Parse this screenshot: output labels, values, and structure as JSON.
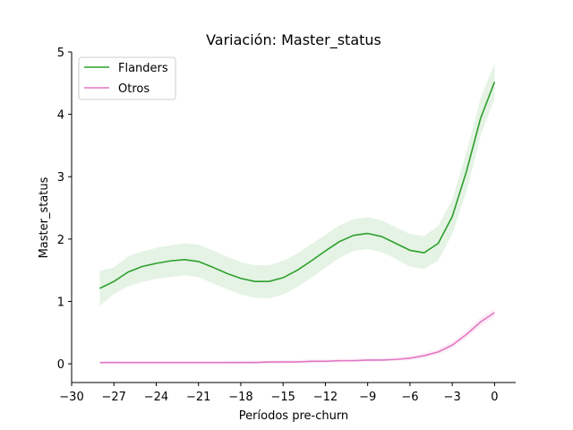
{
  "chart_data": {
    "type": "line",
    "title": "Variación: Master_status",
    "xlabel": "Períodos pre-churn",
    "ylabel": "Master_status",
    "xlim": [
      -30,
      1.5
    ],
    "ylim": [
      -0.3,
      5.0
    ],
    "xticks": [
      -30,
      -27,
      -24,
      -21,
      -18,
      -15,
      -12,
      -9,
      -6,
      -3,
      0
    ],
    "xtick_labels": [
      "−30",
      "−27",
      "−24",
      "−21",
      "−18",
      "−15",
      "−12",
      "−9",
      "−6",
      "−3",
      "0"
    ],
    "yticks": [
      0,
      1,
      2,
      3,
      4,
      5
    ],
    "ytick_labels": [
      "0",
      "1",
      "2",
      "3",
      "4",
      "5"
    ],
    "legend_position": "top-left",
    "x": [
      -28,
      -27,
      -26,
      -25,
      -24,
      -23,
      -22,
      -21,
      -20,
      -19,
      -18,
      -17,
      -16,
      -15,
      -14,
      -13,
      -12,
      -11,
      -10,
      -9,
      -8,
      -7,
      -6,
      -5,
      -4,
      -3,
      -2,
      -1,
      0
    ],
    "series": [
      {
        "name": "Flanders",
        "color": "#2ca02c",
        "values": [
          1.21,
          1.32,
          1.47,
          1.56,
          1.61,
          1.65,
          1.67,
          1.64,
          1.55,
          1.45,
          1.37,
          1.32,
          1.32,
          1.38,
          1.5,
          1.65,
          1.81,
          1.96,
          2.06,
          2.09,
          2.04,
          1.93,
          1.82,
          1.78,
          1.93,
          2.36,
          3.08,
          3.93,
          4.52
        ],
        "lower": [
          0.93,
          1.12,
          1.24,
          1.31,
          1.36,
          1.39,
          1.42,
          1.39,
          1.29,
          1.2,
          1.11,
          1.06,
          1.05,
          1.11,
          1.23,
          1.38,
          1.54,
          1.7,
          1.81,
          1.84,
          1.79,
          1.68,
          1.56,
          1.52,
          1.65,
          2.08,
          2.75,
          3.65,
          4.25
        ],
        "upper": [
          1.49,
          1.55,
          1.72,
          1.8,
          1.86,
          1.9,
          1.93,
          1.91,
          1.82,
          1.72,
          1.63,
          1.58,
          1.58,
          1.65,
          1.77,
          1.92,
          2.07,
          2.22,
          2.32,
          2.35,
          2.3,
          2.19,
          2.08,
          2.05,
          2.21,
          2.63,
          3.39,
          4.25,
          4.82
        ]
      },
      {
        "name": "Otros",
        "color": "#e377c2",
        "values": [
          0.02,
          0.02,
          0.02,
          0.02,
          0.02,
          0.02,
          0.02,
          0.02,
          0.02,
          0.02,
          0.02,
          0.02,
          0.03,
          0.03,
          0.03,
          0.04,
          0.04,
          0.05,
          0.05,
          0.06,
          0.06,
          0.07,
          0.09,
          0.13,
          0.19,
          0.3,
          0.47,
          0.67,
          0.82
        ],
        "lower": [
          0.0,
          -0.01,
          -0.01,
          -0.01,
          -0.01,
          -0.01,
          -0.01,
          -0.01,
          -0.01,
          -0.01,
          -0.01,
          0.0,
          0.0,
          0.0,
          0.01,
          0.01,
          0.02,
          0.02,
          0.03,
          0.03,
          0.04,
          0.05,
          0.06,
          0.09,
          0.15,
          0.25,
          0.41,
          0.6,
          0.76
        ],
        "upper": [
          0.04,
          0.04,
          0.04,
          0.04,
          0.04,
          0.04,
          0.04,
          0.04,
          0.04,
          0.04,
          0.05,
          0.05,
          0.05,
          0.06,
          0.06,
          0.07,
          0.07,
          0.08,
          0.08,
          0.09,
          0.09,
          0.1,
          0.12,
          0.17,
          0.24,
          0.35,
          0.53,
          0.74,
          0.88
        ]
      }
    ]
  }
}
